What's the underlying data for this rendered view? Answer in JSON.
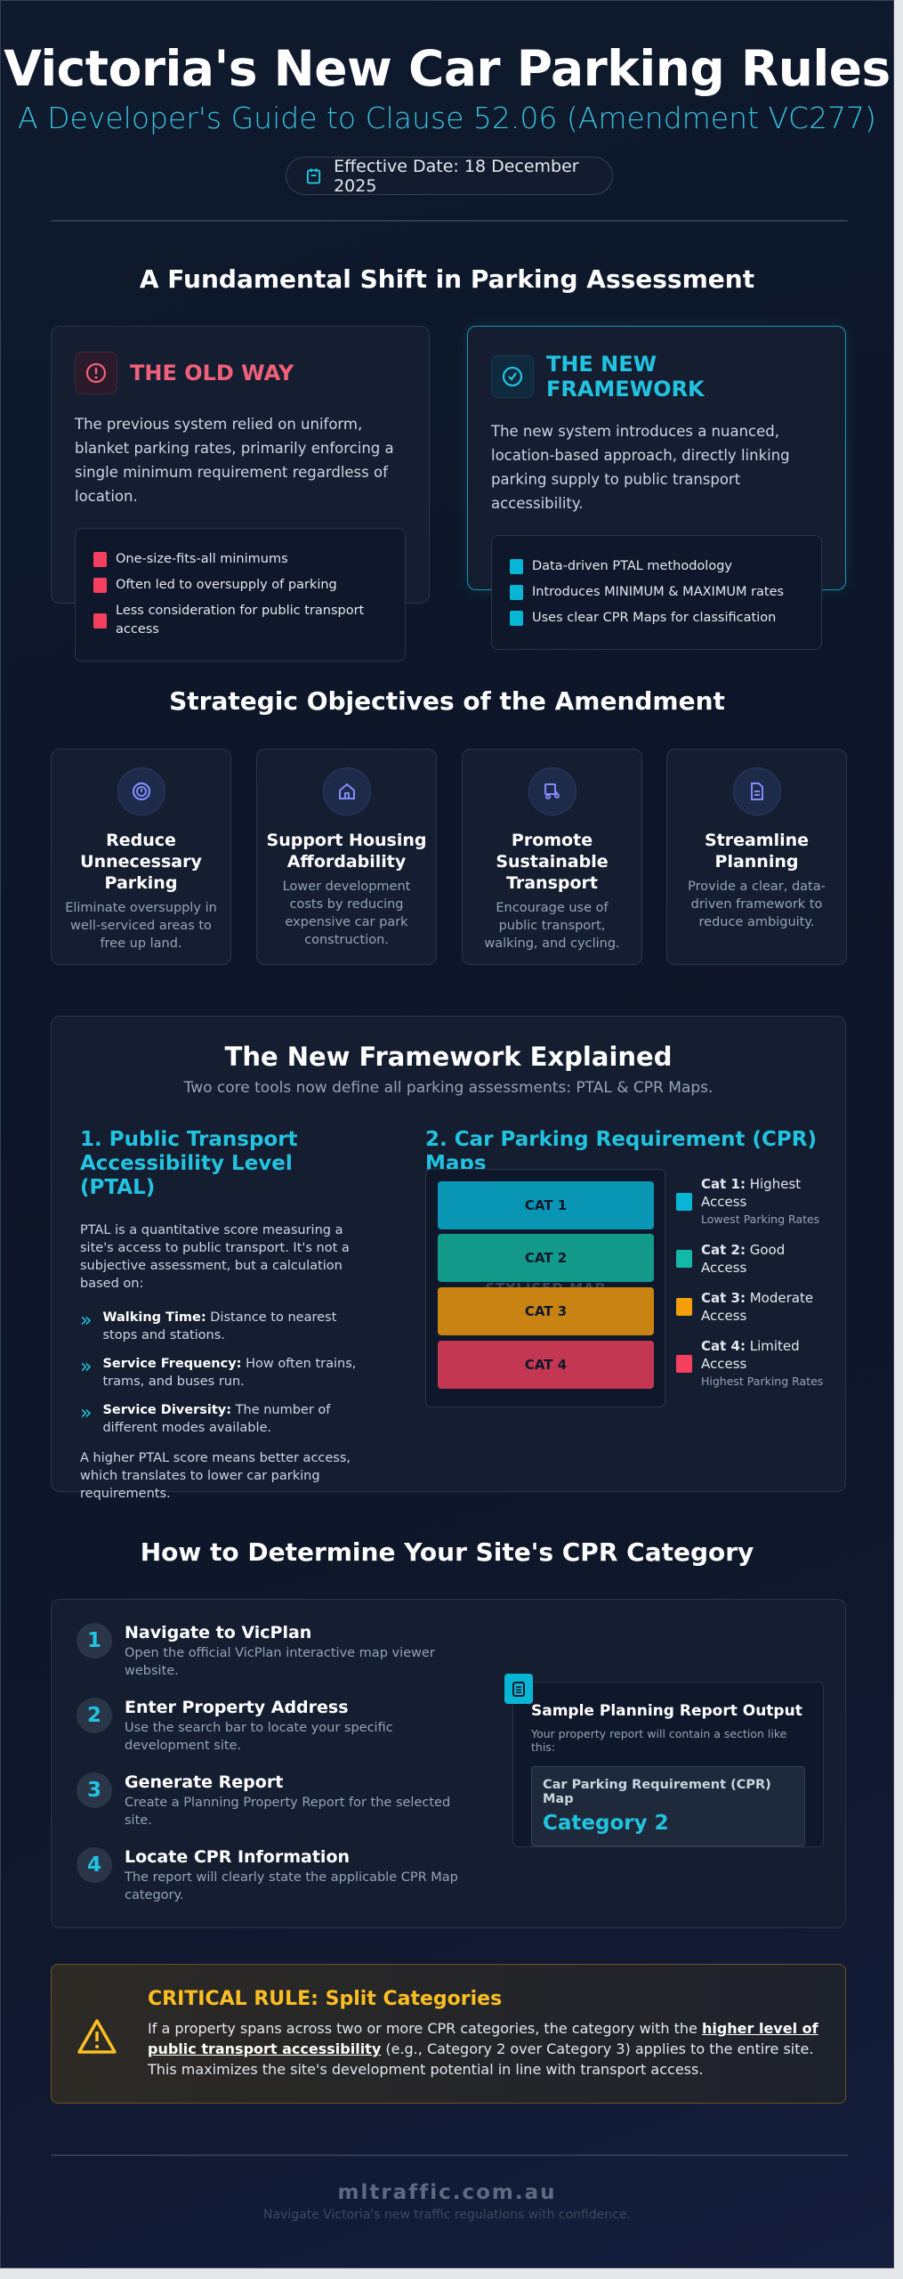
{
  "header": {
    "title": "Victoria's New Car Parking Rules",
    "subtitle": "A Developer's Guide to Clause 52.06 (Amendment VC277)",
    "effective_date": "Effective Date: 18 December 2025"
  },
  "shift": {
    "heading": "A Fundamental Shift in Parking Assessment",
    "old": {
      "title": "THE OLD WAY",
      "text": "The previous system relied on uniform, blanket parking rates, primarily enforcing a single minimum requirement regardless of location.",
      "items": [
        "One-size-fits-all minimums",
        "Often led to oversupply of parking",
        "Less consideration for public transport access"
      ],
      "color": "#f0607a"
    },
    "new": {
      "title": "THE NEW FRAMEWORK",
      "text": "The new system introduces a nuanced, location-based approach, directly linking parking supply to public transport accessibility.",
      "items": [
        "Data-driven PTAL methodology",
        "Introduces MINIMUM & MAXIMUM rates",
        "Uses clear CPR Maps for classification"
      ],
      "color": "#22c3e0"
    }
  },
  "objectives": {
    "heading": "Strategic Objectives of the Amendment",
    "items": [
      {
        "icon": "parking-icon",
        "title": "Reduce Unnecessary Parking",
        "desc": "Eliminate oversupply in well-serviced areas to free up land."
      },
      {
        "icon": "home-icon",
        "title": "Support Housing Affordability",
        "desc": "Lower development costs by reducing expensive car park construction."
      },
      {
        "icon": "transport-icon",
        "title": "Promote Sustainable Transport",
        "desc": "Encourage use of public transport, walking, and cycling."
      },
      {
        "icon": "document-icon",
        "title": "Streamline Planning",
        "desc": "Provide a clear, data-driven framework to reduce ambiguity."
      }
    ]
  },
  "framework": {
    "heading": "The New Framework Explained",
    "subheading": "Two core tools now define all parking assessments: PTAL & CPR Maps.",
    "ptal": {
      "title": "1. Public Transport Accessibility Level (PTAL)",
      "intro": "PTAL is a quantitative score measuring a site's access to public transport. It's not a subjective assessment, but a calculation based on:",
      "factors": [
        {
          "label": "Walking Time:",
          "text": " Distance to nearest stops and stations."
        },
        {
          "label": "Service Frequency:",
          "text": " How often trains, trams, and buses run."
        },
        {
          "label": "Service Diversity:",
          "text": " The number of different modes available."
        }
      ],
      "outro": "A higher PTAL score means better access, which translates to lower car parking requirements."
    },
    "cpr": {
      "title": "2. Car Parking Requirement (CPR) Maps",
      "watermark": "STYLISED MAP",
      "categories": [
        {
          "label": "CAT 1",
          "color": "#0896b4",
          "legend_label": "Cat 1:",
          "legend_text": " Highest Access",
          "note": "Lowest Parking Rates",
          "swatch": "#06b6d4"
        },
        {
          "label": "CAT 2",
          "color": "#139a8a",
          "legend_label": "Cat 2:",
          "legend_text": " Good Access",
          "note": "",
          "swatch": "#14b8a6"
        },
        {
          "label": "CAT 3",
          "color": "#c88312",
          "legend_label": "Cat 3:",
          "legend_text": " Moderate Access",
          "note": "",
          "swatch": "#f59e0b"
        },
        {
          "label": "CAT 4",
          "color": "#c43752",
          "legend_label": "Cat 4:",
          "legend_text": " Limited Access",
          "note": "Highest Parking Rates",
          "swatch": "#f43f5e"
        }
      ]
    }
  },
  "howto": {
    "heading": "How to Determine Your Site's CPR Category",
    "steps": [
      {
        "num": "1",
        "title": "Navigate to VicPlan",
        "desc": "Open the official VicPlan interactive map viewer website."
      },
      {
        "num": "2",
        "title": "Enter Property Address",
        "desc": "Use the search bar to locate your specific development site."
      },
      {
        "num": "3",
        "title": "Generate Report",
        "desc": "Create a Planning Property Report for the selected site."
      },
      {
        "num": "4",
        "title": "Locate CPR Information",
        "desc": "The report will clearly state the applicable CPR Map category."
      }
    ],
    "sample": {
      "title": "Sample Planning Report Output",
      "desc": "Your property report will contain a section like this:",
      "label": "Car Parking Requirement (CPR) Map",
      "value": "Category 2"
    }
  },
  "critical": {
    "title": "CRITICAL RULE: Split Categories",
    "text1": "If a property spans across two or more CPR categories, the category with the ",
    "emphasis": "higher level of public transport accessibility",
    "text2": " (e.g., Category 2 over Category 3) applies to the entire site. This maximizes the site's development potential in line with transport access.",
    "color": "#fbbf24"
  },
  "footer": {
    "domain": "mltraffic.com.au",
    "tagline": "Navigate Victoria's new traffic regulations with confidence."
  }
}
